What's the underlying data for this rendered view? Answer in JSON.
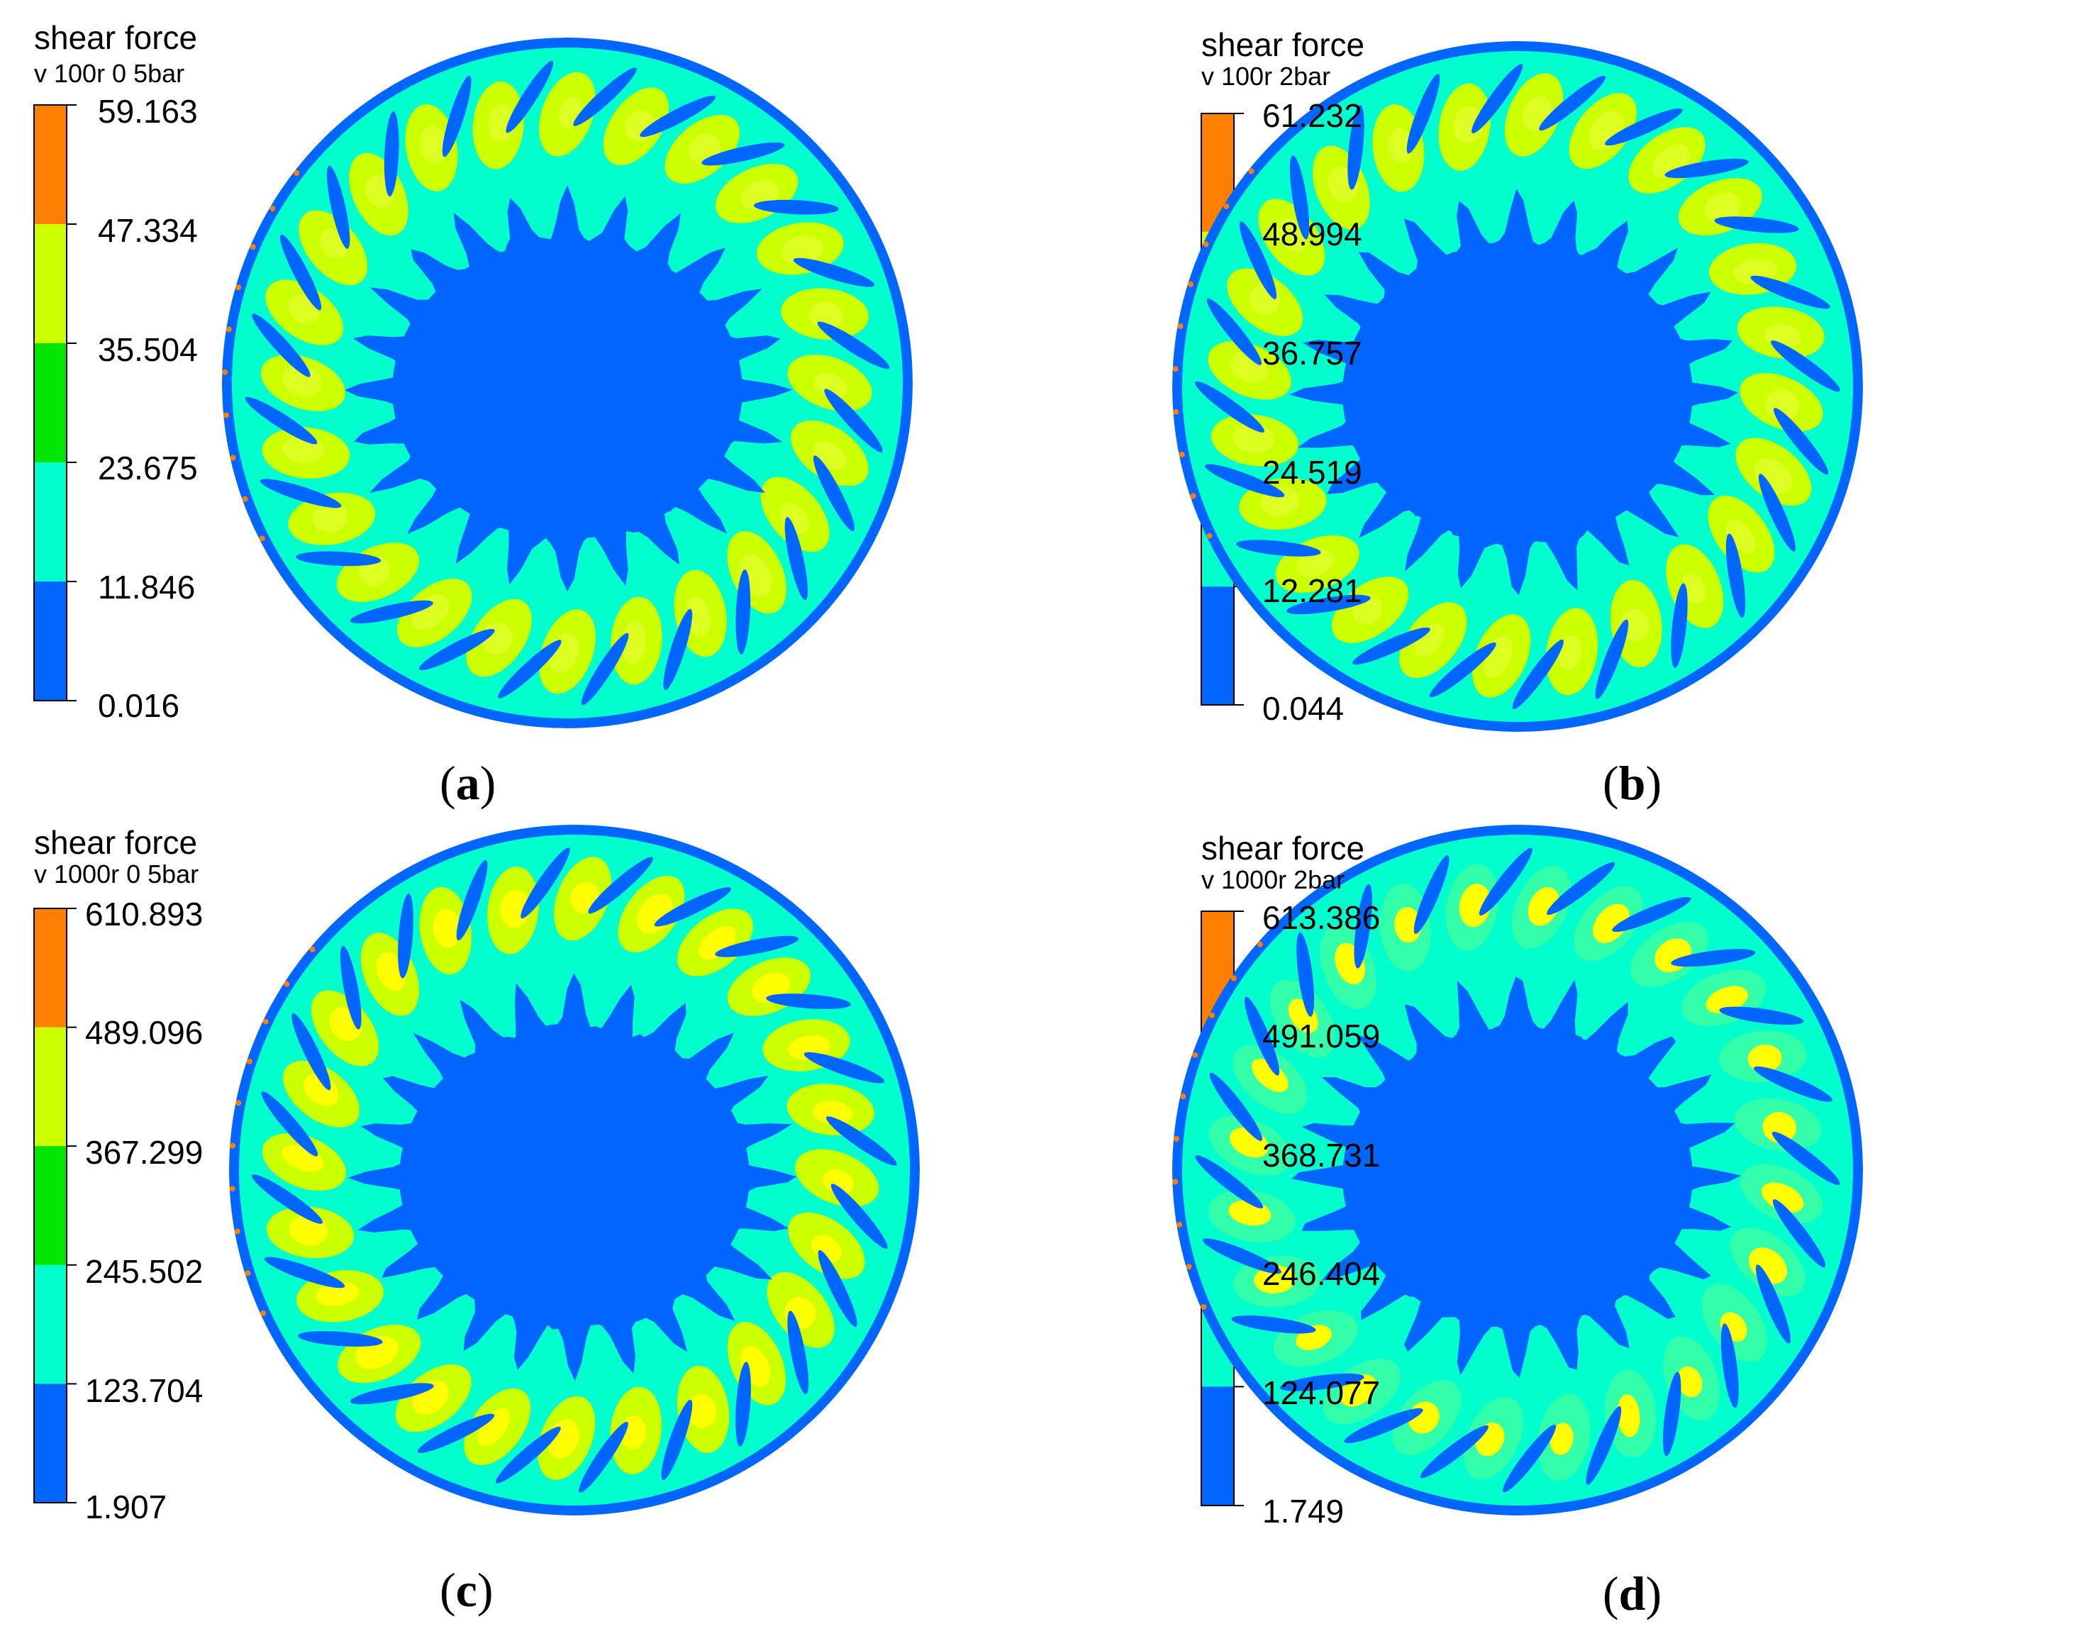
{
  "chart_data": [
    {
      "type": "heatmap",
      "caption": "a",
      "legend_title": "shear force",
      "legend_subtitle": "v 100r 0 5bar",
      "levels": [
        "59.163",
        "47.334",
        "35.504",
        "23.675",
        "11.846",
        "0.016"
      ],
      "range": [
        0.016,
        59.163
      ],
      "lobes": 24
    },
    {
      "type": "heatmap",
      "caption": "b",
      "legend_title": "shear force",
      "legend_subtitle": "v 100r 2bar",
      "levels": [
        "61.232",
        "48.994",
        "36.757",
        "24.519",
        "12.281",
        "0.044"
      ],
      "range": [
        0.044,
        61.232
      ],
      "lobes": 24
    },
    {
      "type": "heatmap",
      "caption": "c",
      "legend_title": "shear force",
      "legend_subtitle": "v 1000r 0 5bar",
      "levels": [
        "610.893",
        "489.096",
        "367.299",
        "245.502",
        "123.704",
        "1.907"
      ],
      "range": [
        1.907,
        610.893
      ],
      "lobes": 24
    },
    {
      "type": "heatmap",
      "caption": "d",
      "legend_title": "shear force",
      "legend_subtitle": "v 1000r 2bar",
      "levels": [
        "613.386",
        "491.059",
        "368.731",
        "246.404",
        "124.077",
        "1.749"
      ],
      "range": [
        1.749,
        613.386
      ],
      "lobes": 24
    }
  ],
  "colors": {
    "band_top_to_bottom": [
      "#ff8000",
      "#ccff00",
      "#00e600",
      "#00ffcc",
      "#0066ff"
    ],
    "blue": "#0066ff",
    "cyan": "#00ffcc",
    "lime": "#ccff00",
    "yellow": "#ffff00",
    "green": "#00e600",
    "orange": "#ff8000"
  }
}
